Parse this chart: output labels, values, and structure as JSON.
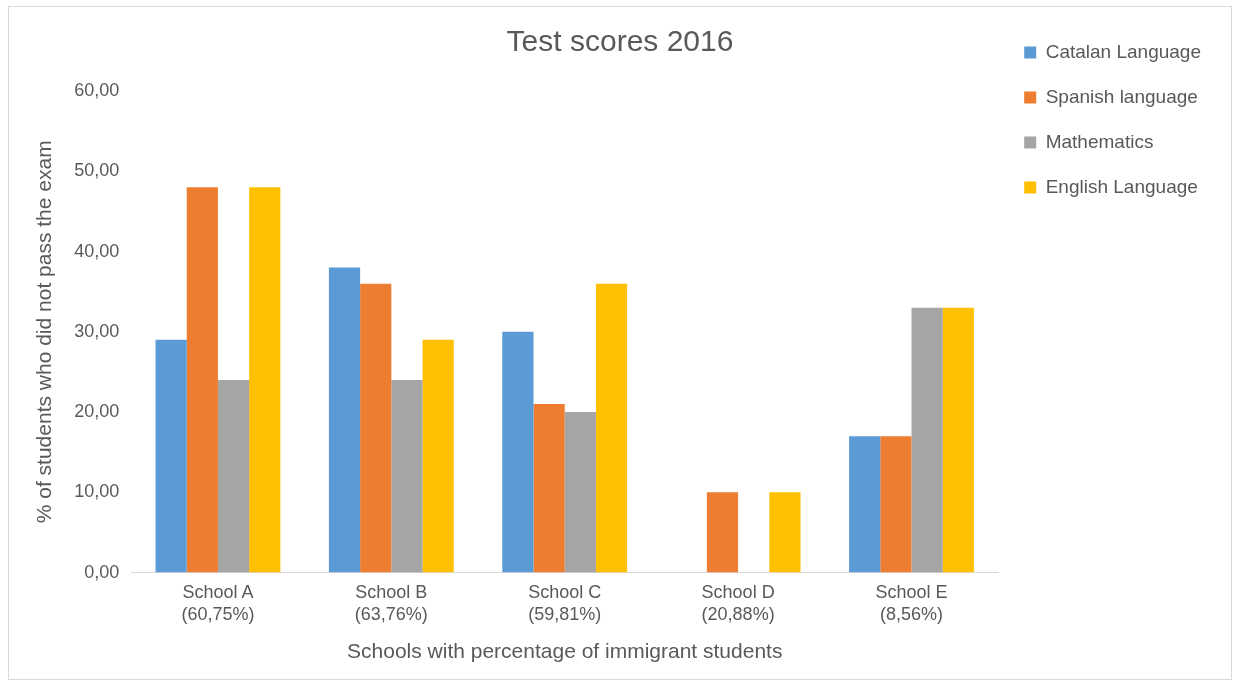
{
  "chart_data": {
    "type": "bar",
    "title": "Test scores 2016",
    "xlabel": "Schools with percentage of immigrant students",
    "ylabel": "% of students who did not pass the exam",
    "categories": [
      "School A\n(60,75%)",
      "School B\n(63,76%)",
      "School C\n(59,81%)",
      "School D\n(20,88%)",
      "School E\n(8,56%)"
    ],
    "series": [
      {
        "name": "Catalan Language",
        "color": "#5b9bd5",
        "values": [
          29,
          38,
          30,
          null,
          17
        ]
      },
      {
        "name": "Spanish language",
        "color": "#ed7d31",
        "values": [
          48,
          36,
          21,
          10,
          17
        ]
      },
      {
        "name": "Mathematics",
        "color": "#a5a5a5",
        "values": [
          24,
          24,
          20,
          null,
          33
        ]
      },
      {
        "name": "English Language",
        "color": "#ffc000",
        "values": [
          48,
          29,
          36,
          10,
          33
        ]
      }
    ],
    "ylim": [
      0,
      60
    ],
    "yticks": [
      {
        "value": 0,
        "label": "0,00"
      },
      {
        "value": 10,
        "label": "10,00"
      },
      {
        "value": 20,
        "label": "20,00"
      },
      {
        "value": 30,
        "label": "30,00"
      },
      {
        "value": 40,
        "label": "40,00"
      },
      {
        "value": 50,
        "label": "50,00"
      },
      {
        "value": 60,
        "label": "60,00"
      }
    ],
    "grid": false,
    "legend": "right"
  }
}
